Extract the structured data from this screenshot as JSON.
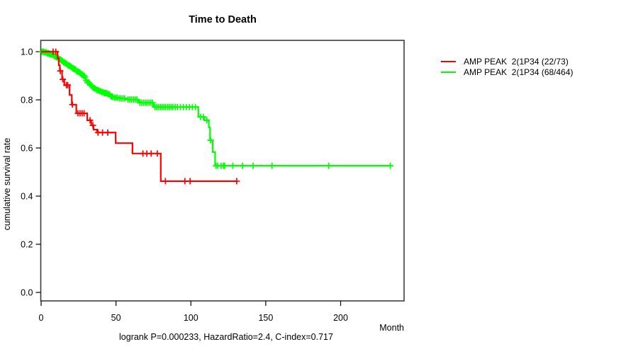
{
  "chart": {
    "title": "Time to Death",
    "ylabel": "cumulative survival rate",
    "xlabel": "Month",
    "footer": "logrank P=0.000233, HazardRatio=2.4, C-index=0.717"
  },
  "chart_data": {
    "type": "line",
    "subtype": "kaplan-meier-step-function",
    "title": "Time to Death",
    "xlabel": "Month",
    "ylabel": "cumulative survival rate",
    "xlim": [
      0,
      242
    ],
    "ylim": [
      0,
      1
    ],
    "x_ticks": [
      0,
      50,
      100,
      150,
      200
    ],
    "y_ticks": [
      0.0,
      0.2,
      0.4,
      0.6,
      0.8,
      1.0
    ],
    "grid": "off",
    "legend_position": "right-outside",
    "annotation": "logrank P=0.000233, HazardRatio=2.4, C-index=0.717",
    "axis_color": "#3d3d3d",
    "series": [
      {
        "name": "AMP PEAK  2(1P34 (68/464)",
        "color": "#00ff00",
        "draw_order": 1,
        "steps": [
          [
            0,
            1.0
          ],
          [
            2,
            0.997
          ],
          [
            4,
            0.993
          ],
          [
            6,
            0.989
          ],
          [
            8,
            0.985
          ],
          [
            9,
            0.981
          ],
          [
            10,
            0.977
          ],
          [
            11,
            0.973
          ],
          [
            12,
            0.969
          ],
          [
            13,
            0.964
          ],
          [
            14,
            0.96
          ],
          [
            15,
            0.956
          ],
          [
            16,
            0.951
          ],
          [
            17,
            0.947
          ],
          [
            18,
            0.943
          ],
          [
            19,
            0.939
          ],
          [
            20,
            0.935
          ],
          [
            21,
            0.931
          ],
          [
            22,
            0.927
          ],
          [
            23,
            0.922
          ],
          [
            24,
            0.918
          ],
          [
            25,
            0.914
          ],
          [
            26,
            0.91
          ],
          [
            27,
            0.905
          ],
          [
            28,
            0.9
          ],
          [
            29,
            0.893
          ],
          [
            30,
            0.88
          ],
          [
            31,
            0.872
          ],
          [
            32,
            0.866
          ],
          [
            33,
            0.86
          ],
          [
            34,
            0.854
          ],
          [
            35,
            0.849
          ],
          [
            36,
            0.844
          ],
          [
            37,
            0.84
          ],
          [
            38.5,
            0.836
          ],
          [
            40,
            0.832
          ],
          [
            42,
            0.828
          ],
          [
            44,
            0.824
          ],
          [
            45.5,
            0.818
          ],
          [
            47,
            0.813
          ],
          [
            48.5,
            0.809
          ],
          [
            52,
            0.806
          ],
          [
            56.8,
            0.801
          ],
          [
            65,
            0.788
          ],
          [
            75,
            0.77
          ],
          [
            105,
            0.729
          ],
          [
            109,
            0.715
          ],
          [
            112,
            0.686
          ],
          [
            112.8,
            0.632
          ],
          [
            114.6,
            0.583
          ],
          [
            116.2,
            0.526
          ]
        ],
        "end_month": 233.2,
        "censor_months": [
          0.5,
          1,
          1.7,
          2.4,
          3,
          3.6,
          4.2,
          4.8,
          5.4,
          6,
          6.6,
          7.2,
          7.8,
          8.4,
          9,
          9.6,
          10.2,
          10.8,
          11.4,
          12,
          12.6,
          13.2,
          13.8,
          14.4,
          15,
          15.6,
          16.2,
          16.8,
          17.4,
          18,
          18.6,
          19.2,
          19.8,
          20.4,
          21,
          21.6,
          22.2,
          22.8,
          23.4,
          24,
          24.6,
          25.2,
          25.8,
          26.4,
          27,
          27.6,
          28.2,
          28.8,
          29.4,
          30.2,
          31,
          31.8,
          32.6,
          33.4,
          34.2,
          35,
          35.8,
          36.6,
          37.4,
          38.2,
          39,
          39.8,
          40.6,
          41.4,
          42.2,
          43,
          43.8,
          44.6,
          45.4,
          46.2,
          47,
          47.8,
          49,
          50,
          51,
          52.2,
          53.4,
          54.6,
          55.8,
          58,
          59.2,
          60.4,
          61.6,
          62.8,
          64,
          66,
          67.2,
          68.4,
          69.6,
          70.8,
          72,
          73.2,
          74.4,
          76,
          77.2,
          78.4,
          79.6,
          80.8,
          82,
          83.2,
          84.4,
          85.6,
          86.8,
          88,
          89.5,
          91,
          93,
          95,
          97,
          99,
          101,
          103,
          106.5,
          108.3,
          110.7,
          113.2,
          116.8,
          118,
          120.2,
          121.8,
          122.6,
          128,
          134.5,
          141.6,
          154.2,
          192.1,
          233.2
        ]
      },
      {
        "name": "AMP PEAK  2(1P34 (22/73)",
        "color": "#ff0000",
        "draw_order": 2,
        "steps": [
          [
            0,
            1.0
          ],
          [
            11,
            0.973
          ],
          [
            11.8,
            0.944
          ],
          [
            12.5,
            0.92
          ],
          [
            14,
            0.885
          ],
          [
            15.5,
            0.861
          ],
          [
            19,
            0.82
          ],
          [
            20.5,
            0.78
          ],
          [
            23.5,
            0.744
          ],
          [
            30.8,
            0.715
          ],
          [
            33.5,
            0.694
          ],
          [
            35,
            0.676
          ],
          [
            37.4,
            0.664
          ],
          [
            49.8,
            0.62
          ],
          [
            61,
            0.577
          ],
          [
            79.9,
            0.462
          ]
        ],
        "end_month": 130.6,
        "censor_months": [
          8,
          9.8,
          12.8,
          14.5,
          16.9,
          17.8,
          20.9,
          24.6,
          26,
          27.4,
          28.7,
          32.7,
          34.6,
          38,
          41,
          44.5,
          68,
          70.6,
          73.5,
          77.6,
          83,
          96,
          99.5,
          130.6
        ]
      }
    ],
    "legend_order": [
      "AMP PEAK  2(1P34 (22/73)",
      "AMP PEAK  2(1P34 (68/464)"
    ]
  }
}
